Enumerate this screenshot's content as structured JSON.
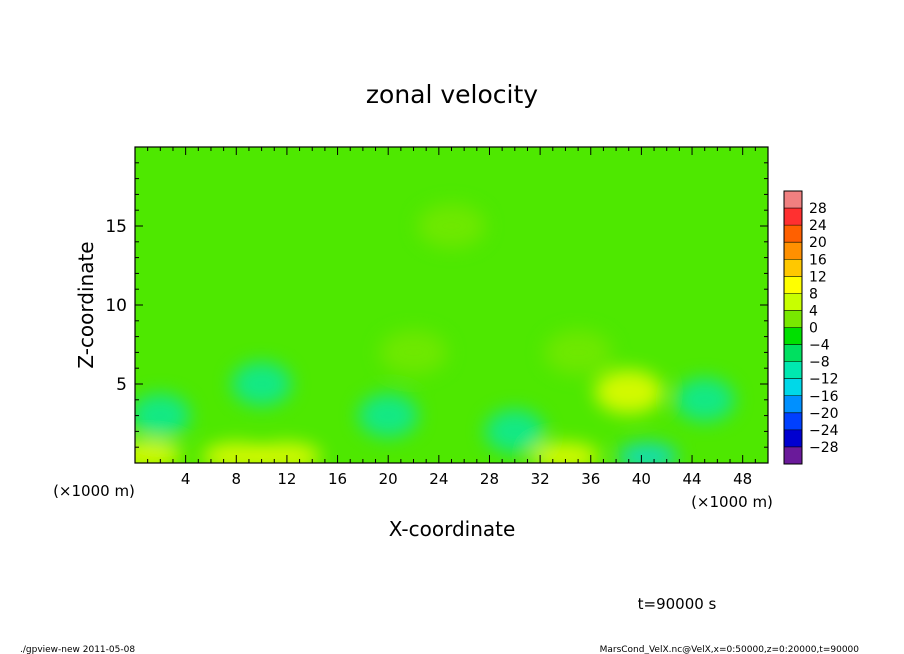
{
  "chart_data": {
    "type": "heatmap",
    "title": "zonal velocity",
    "xlabel": "X-coordinate",
    "ylabel": "Z-coordinate",
    "x_unit_left": "(×1000 m)",
    "x_unit_right": "(×1000 m)",
    "xlim": [
      0,
      50
    ],
    "ylim": [
      0,
      20
    ],
    "xticks": [
      4,
      8,
      12,
      16,
      20,
      24,
      28,
      32,
      36,
      40,
      44,
      48
    ],
    "yticks": [
      5,
      10,
      15
    ],
    "xtick_labels": [
      "4",
      "8",
      "12",
      "16",
      "20",
      "24",
      "28",
      "32",
      "36",
      "40",
      "44",
      "48"
    ],
    "ytick_labels": [
      "5",
      "10",
      "15"
    ],
    "colorbar": {
      "levels": [
        32,
        28,
        24,
        20,
        16,
        12,
        8,
        4,
        0,
        -4,
        -8,
        -12,
        -16,
        -20,
        -24,
        -28,
        -32
      ],
      "labels": [
        "28",
        "24",
        "20",
        "16",
        "12",
        "8",
        "4",
        "0",
        "−4",
        "−8",
        "−12",
        "−16",
        "−20",
        "−24",
        "−28"
      ],
      "colors": [
        "#f08080",
        "#ff3030",
        "#ff6000",
        "#ff9000",
        "#ffc800",
        "#ffff00",
        "#c8ff00",
        "#78e800",
        "#00e000",
        "#00e060",
        "#00e8b0",
        "#00d8e8",
        "#0090ff",
        "#0040ff",
        "#0000d0",
        "#6a1a9a"
      ]
    },
    "field_description_points": [
      {
        "x": 1,
        "z": 0.5,
        "u": 10
      },
      {
        "x": 8,
        "z": 0.4,
        "u": 10
      },
      {
        "x": 12,
        "z": 0.4,
        "u": 10
      },
      {
        "x": 34,
        "z": 0.4,
        "u": 9
      },
      {
        "x": 40.5,
        "z": 0.4,
        "u": -12
      },
      {
        "x": 10,
        "z": 5.0,
        "u": -9
      },
      {
        "x": 2,
        "z": 3.0,
        "u": -9
      },
      {
        "x": 20,
        "z": 3.0,
        "u": -8
      },
      {
        "x": 30,
        "z": 2.0,
        "u": -8
      },
      {
        "x": 39,
        "z": 4.5,
        "u": 10
      },
      {
        "x": 45,
        "z": 4.0,
        "u": -9
      },
      {
        "x": 22,
        "z": 7.0,
        "u": 4
      },
      {
        "x": 35,
        "z": 7.0,
        "u": 3
      },
      {
        "x": 25,
        "z": 15.0,
        "u": 1
      }
    ]
  },
  "annotations": {
    "time": "t=90000 s",
    "footer_left": "./gpview-new   2011-05-08",
    "footer_right": "MarsCond_VelX.nc@VelX,x=0:50000,z=0:20000,t=90000"
  }
}
